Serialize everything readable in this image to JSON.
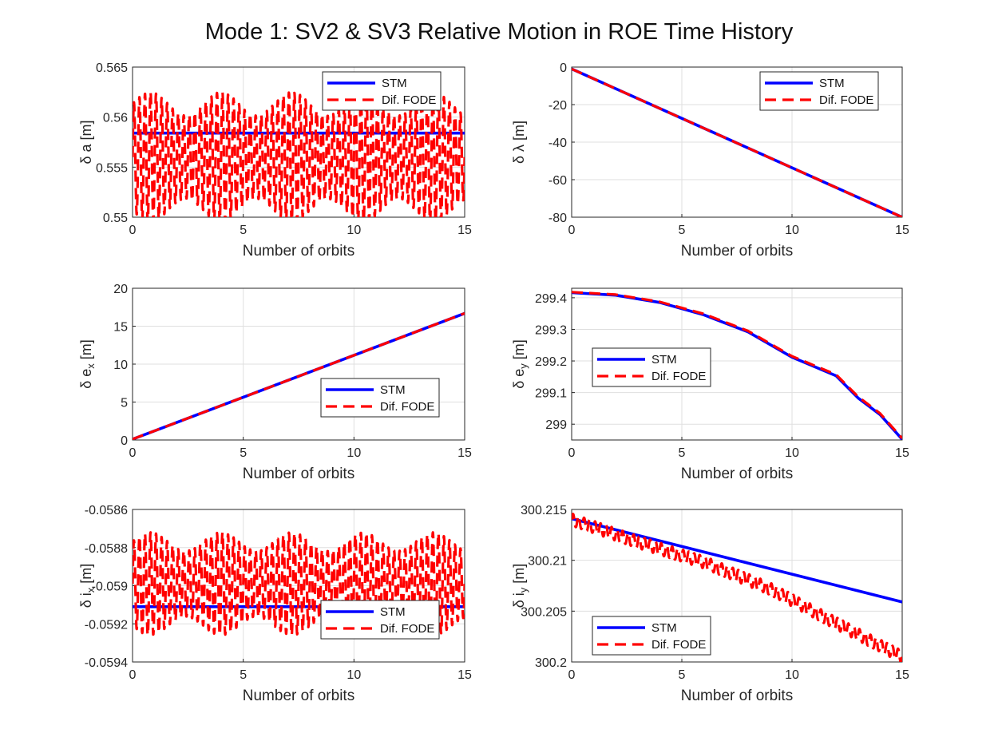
{
  "figure": {
    "title": "Mode 1: SV2 & SV3 Relative Motion in ROE Time History",
    "colors": {
      "stm": "#0000ff",
      "fode": "#ff0000",
      "grid": "#dfdfdf",
      "axis": "#262626"
    }
  },
  "chart_data": [
    {
      "type": "line",
      "xlabel": "Number of orbits",
      "ylabel": "δ a [m]",
      "xlim": [
        0,
        15
      ],
      "ylim": [
        0.55,
        0.565
      ],
      "xticks": [
        "0",
        "5",
        "10",
        "15"
      ],
      "yticks": [
        "0.55",
        "0.555",
        "0.56",
        "0.565"
      ],
      "grid": true,
      "legend": "top-right",
      "series": [
        {
          "name": "STM",
          "style": "solid",
          "points": [
            [
              0,
              0.5584
            ],
            [
              15,
              0.5584
            ]
          ]
        },
        {
          "name": "Dif. FODE",
          "style": "dashed",
          "oscillating": true,
          "points": [
            [
              0,
              0.5587
            ],
            [
              15,
              0.5587
            ]
          ],
          "band": [
            0.5495,
            0.5625
          ]
        }
      ]
    },
    {
      "type": "line",
      "xlabel": "Number of orbits",
      "ylabel": "δ λ [m]",
      "xlim": [
        0,
        15
      ],
      "ylim": [
        -80,
        0
      ],
      "xticks": [
        "0",
        "5",
        "10",
        "15"
      ],
      "yticks": [
        "-80",
        "-60",
        "-40",
        "-20",
        "0"
      ],
      "grid": true,
      "legend": "top-right",
      "series": [
        {
          "name": "STM",
          "style": "solid",
          "points": [
            [
              0,
              -1
            ],
            [
              15,
              -80
            ]
          ]
        },
        {
          "name": "Dif. FODE",
          "style": "dashed",
          "points": [
            [
              0,
              -1
            ],
            [
              15,
              -80
            ]
          ]
        }
      ]
    },
    {
      "type": "line",
      "xlabel": "Number of orbits",
      "ylabel": "δ e_x [m]",
      "xlim": [
        0,
        15
      ],
      "ylim": [
        0,
        20
      ],
      "xticks": [
        "0",
        "5",
        "10",
        "15"
      ],
      "yticks": [
        "0",
        "5",
        "10",
        "15",
        "20"
      ],
      "grid": true,
      "legend": "bottom-right",
      "series": [
        {
          "name": "STM",
          "style": "solid",
          "points": [
            [
              0,
              0.1
            ],
            [
              15,
              16.7
            ]
          ]
        },
        {
          "name": "Dif. FODE",
          "style": "dashed",
          "points": [
            [
              0,
              0.1
            ],
            [
              15,
              16.7
            ]
          ]
        }
      ]
    },
    {
      "type": "line",
      "xlabel": "Number of orbits",
      "ylabel": "δ e_y [m]",
      "xlim": [
        0,
        15
      ],
      "ylim": [
        298.95,
        299.43
      ],
      "xticks": [
        "0",
        "5",
        "10",
        "15"
      ],
      "yticks": [
        "299",
        "299.1",
        "299.2",
        "299.3",
        "299.4"
      ],
      "grid": true,
      "legend": "center-left",
      "series": [
        {
          "name": "STM",
          "style": "solid",
          "points": [
            [
              0,
              299.416
            ],
            [
              2,
              299.408
            ],
            [
              4,
              299.385
            ],
            [
              6,
              299.346
            ],
            [
              8,
              299.292
            ],
            [
              10,
              299.212
            ],
            [
              12,
              299.153
            ],
            [
              13,
              299.083
            ],
            [
              14,
              299.03
            ],
            [
              15,
              298.952
            ]
          ]
        },
        {
          "name": "Dif. FODE",
          "style": "dashed",
          "points": [
            [
              0,
              299.418
            ],
            [
              2,
              299.41
            ],
            [
              4,
              299.387
            ],
            [
              6,
              299.349
            ],
            [
              8,
              299.295
            ],
            [
              10,
              299.215
            ],
            [
              12,
              299.157
            ],
            [
              13,
              299.087
            ],
            [
              14,
              299.034
            ],
            [
              15,
              298.955
            ]
          ]
        }
      ]
    },
    {
      "type": "line",
      "xlabel": "Number of orbits",
      "ylabel": "δ i_x [m]",
      "xlim": [
        0,
        15
      ],
      "ylim": [
        -0.0594,
        -0.0586
      ],
      "xticks": [
        "0",
        "5",
        "10",
        "15"
      ],
      "yticks": [
        "-0.0594",
        "-0.0592",
        "-0.059",
        "-0.0588",
        "-0.0586"
      ],
      "grid": true,
      "legend": "bottom-right",
      "series": [
        {
          "name": "STM",
          "style": "solid",
          "points": [
            [
              0,
              -0.05911
            ],
            [
              15,
              -0.05911
            ]
          ]
        },
        {
          "name": "Dif. FODE",
          "style": "dashed",
          "oscillating": true,
          "points": [
            [
              0,
              -0.05898
            ],
            [
              15,
              -0.05898
            ]
          ],
          "band": [
            -0.05926,
            -0.05872
          ]
        }
      ]
    },
    {
      "type": "line",
      "xlabel": "Number of orbits",
      "ylabel": "δ i_y [m]",
      "xlim": [
        0,
        15
      ],
      "ylim": [
        300.2,
        300.215
      ],
      "xticks": [
        "0",
        "5",
        "10",
        "15"
      ],
      "yticks": [
        "300.2",
        "300.205",
        "300.21",
        "300.215"
      ],
      "grid": true,
      "legend": "bottom-left",
      "series": [
        {
          "name": "STM",
          "style": "solid",
          "points": [
            [
              0,
              300.2141
            ],
            [
              15,
              300.2059
            ]
          ]
        },
        {
          "name": "Dif. FODE",
          "style": "dashed",
          "oscillating": true,
          "points": [
            [
              0,
              300.214
            ],
            [
              3,
              300.2118
            ],
            [
              6,
              300.2098
            ],
            [
              9,
              300.2072
            ],
            [
              12,
              300.2038
            ],
            [
              15,
              300.2005
            ]
          ],
          "amplitude": 0.0006
        }
      ]
    }
  ]
}
